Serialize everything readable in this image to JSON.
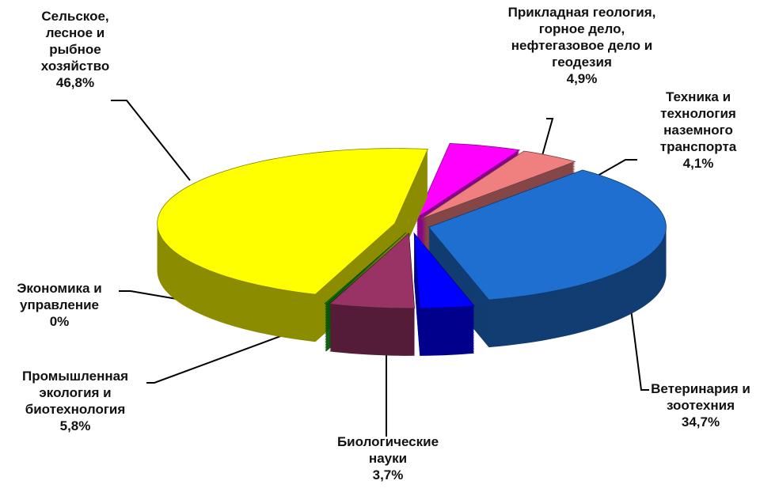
{
  "chart_data": {
    "type": "pie3d",
    "categories": [
      "Прикладная геология, горное дело, нефтегазовое дело и геодезия",
      "Техника и технология наземного транспорта",
      "Ветеринария и зоотехния",
      "Биологические науки",
      "Промышленная экология и биотехнология",
      "Экономика и управление",
      "Сельское, лесное и рыбное хозяйство"
    ],
    "values": [
      4.9,
      4.1,
      34.7,
      3.7,
      5.8,
      0,
      46.8
    ],
    "value_labels": [
      "4,9%",
      "4,1%",
      "34,7%",
      "3,7%",
      "5,8%",
      "0%",
      "46,8%"
    ],
    "colors": [
      "#ff00ff",
      "#f08080",
      "#1f6fd0",
      "#0000ff",
      "#993366",
      "#009900",
      "#ffff00"
    ]
  }
}
